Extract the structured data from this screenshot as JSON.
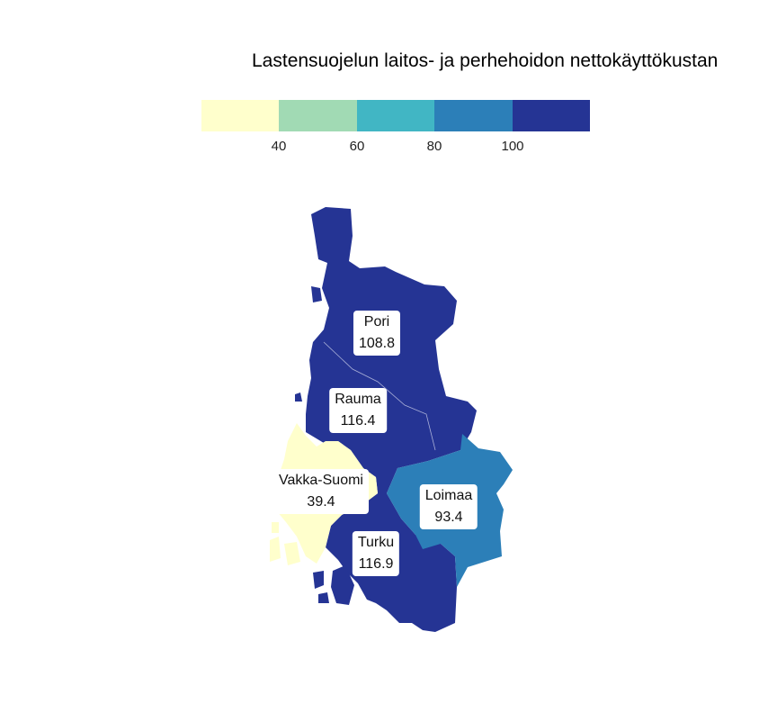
{
  "title": "Lastensuojelun laitos- ja perhehoidon nettokäyttökustan",
  "legend": {
    "colors": [
      "#ffffcc",
      "#a1dab4",
      "#41b6c4",
      "#2c7fb8",
      "#253494"
    ],
    "ticks": [
      "40",
      "60",
      "80",
      "100"
    ]
  },
  "regions": [
    {
      "name": "Pori",
      "value": "108.8",
      "color": "#253494"
    },
    {
      "name": "Rauma",
      "value": "116.4",
      "color": "#253494"
    },
    {
      "name": "Vakka-Suomi",
      "value": "39.4",
      "color": "#ffffcc"
    },
    {
      "name": "Loimaa",
      "value": "93.4",
      "color": "#2c7fb8"
    },
    {
      "name": "Turku",
      "value": "116.9",
      "color": "#253494"
    }
  ]
}
